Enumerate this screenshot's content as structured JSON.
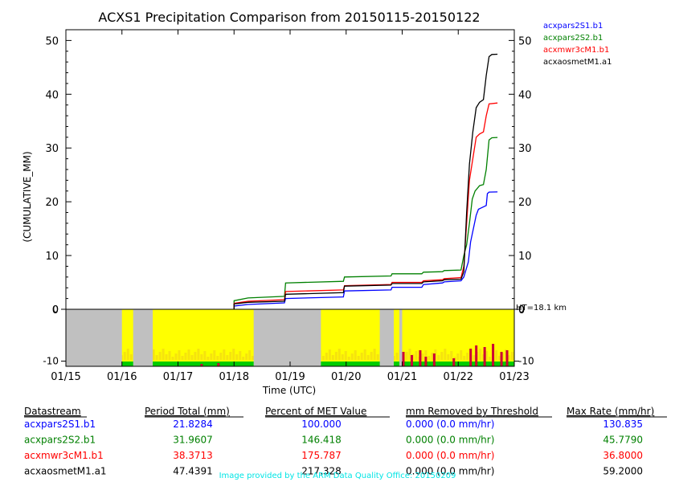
{
  "chart_data": {
    "type": "line",
    "title": "ACXS1 Precipitation Comparison from 20150115-20150122",
    "ylabel": "(CUMULATIVE_MM)",
    "xlabel": "Time (UTC)",
    "x_ticks": [
      "01/15",
      "01/16",
      "01/17",
      "01/18",
      "01/19",
      "01/20",
      "01/21",
      "01/22",
      "01/23"
    ],
    "xlim_days": [
      0,
      8
    ],
    "ylim": [
      0,
      52
    ],
    "y_ticks": [
      0,
      10,
      20,
      30,
      40,
      50
    ],
    "series": [
      {
        "name": "acxpars2S1.b1",
        "color": "#0000ff",
        "points": [
          [
            3.0,
            0
          ],
          [
            3.0,
            0.6
          ],
          [
            3.25,
            0.9
          ],
          [
            3.9,
            1.2
          ],
          [
            3.92,
            2.0
          ],
          [
            4.95,
            2.3
          ],
          [
            4.97,
            3.4
          ],
          [
            5.8,
            3.6
          ],
          [
            5.82,
            4.1
          ],
          [
            6.35,
            4.1
          ],
          [
            6.38,
            4.6
          ],
          [
            6.72,
            4.9
          ],
          [
            6.75,
            5.1
          ],
          [
            7.05,
            5.3
          ],
          [
            7.1,
            6.0
          ],
          [
            7.18,
            8.8
          ],
          [
            7.22,
            12.5
          ],
          [
            7.28,
            15.5
          ],
          [
            7.32,
            17.5
          ],
          [
            7.36,
            18.6
          ],
          [
            7.4,
            18.8
          ],
          [
            7.5,
            19.3
          ],
          [
            7.52,
            21.5
          ],
          [
            7.55,
            21.8
          ],
          [
            7.7,
            21.83
          ]
        ]
      },
      {
        "name": "acxpars2S2.b1",
        "color": "#008000",
        "points": [
          [
            3.0,
            0
          ],
          [
            3.0,
            1.6
          ],
          [
            3.25,
            2.1
          ],
          [
            3.9,
            2.4
          ],
          [
            3.92,
            4.9
          ],
          [
            4.95,
            5.2
          ],
          [
            4.97,
            6.0
          ],
          [
            5.8,
            6.2
          ],
          [
            5.82,
            6.6
          ],
          [
            6.35,
            6.6
          ],
          [
            6.38,
            6.9
          ],
          [
            6.72,
            7.0
          ],
          [
            6.75,
            7.2
          ],
          [
            7.05,
            7.3
          ],
          [
            7.1,
            10.0
          ],
          [
            7.15,
            12.0
          ],
          [
            7.2,
            16.0
          ],
          [
            7.25,
            20.5
          ],
          [
            7.3,
            22.0
          ],
          [
            7.38,
            23.0
          ],
          [
            7.45,
            23.2
          ],
          [
            7.5,
            26.0
          ],
          [
            7.55,
            31.5
          ],
          [
            7.6,
            31.9
          ],
          [
            7.7,
            31.96
          ]
        ]
      },
      {
        "name": "acxmwr3cM1.b1",
        "color": "#ff0000",
        "points": [
          [
            3.0,
            0
          ],
          [
            3.0,
            1.1
          ],
          [
            3.25,
            1.5
          ],
          [
            3.9,
            1.8
          ],
          [
            3.92,
            3.3
          ],
          [
            4.95,
            3.6
          ],
          [
            4.97,
            4.4
          ],
          [
            5.8,
            4.6
          ],
          [
            5.82,
            5.0
          ],
          [
            6.35,
            5.0
          ],
          [
            6.38,
            5.3
          ],
          [
            6.72,
            5.5
          ],
          [
            6.75,
            5.7
          ],
          [
            7.05,
            5.9
          ],
          [
            7.1,
            8.0
          ],
          [
            7.15,
            16.0
          ],
          [
            7.2,
            24.0
          ],
          [
            7.26,
            28.0
          ],
          [
            7.32,
            32.0
          ],
          [
            7.38,
            32.6
          ],
          [
            7.45,
            33.0
          ],
          [
            7.5,
            36.0
          ],
          [
            7.55,
            38.2
          ],
          [
            7.7,
            38.37
          ]
        ]
      },
      {
        "name": "acxaosmetM1.a1",
        "color": "#000000",
        "points": [
          [
            3.0,
            0
          ],
          [
            3.0,
            1.0
          ],
          [
            3.25,
            1.3
          ],
          [
            3.9,
            1.5
          ],
          [
            3.92,
            2.8
          ],
          [
            4.95,
            3.1
          ],
          [
            4.97,
            4.3
          ],
          [
            5.8,
            4.5
          ],
          [
            5.82,
            4.8
          ],
          [
            6.35,
            4.8
          ],
          [
            6.38,
            5.1
          ],
          [
            6.72,
            5.3
          ],
          [
            6.75,
            5.5
          ],
          [
            7.05,
            5.6
          ],
          [
            7.1,
            7.0
          ],
          [
            7.15,
            18.0
          ],
          [
            7.2,
            27.0
          ],
          [
            7.26,
            33.0
          ],
          [
            7.32,
            37.5
          ],
          [
            7.38,
            38.5
          ],
          [
            7.45,
            39.0
          ],
          [
            7.5,
            43.5
          ],
          [
            7.55,
            47.0
          ],
          [
            7.6,
            47.4
          ],
          [
            7.7,
            47.44
          ]
        ]
      }
    ],
    "radar_panel": {
      "type": "heatmap",
      "right_label": "HT=18.1 km",
      "y_ticks": [
        0,
        -10
      ],
      "ylim": [
        -11,
        0
      ],
      "gaps_days": [
        [
          0.0,
          1.0
        ],
        [
          1.2,
          1.55
        ],
        [
          3.35,
          4.55
        ],
        [
          5.6,
          5.85
        ],
        [
          5.95,
          6.0
        ]
      ],
      "colors": {
        "gap": "#c0c0c0",
        "fill": "#ffff00",
        "ground": "#00cc00",
        "echo": "#cc0033"
      }
    }
  },
  "table": {
    "headers": [
      "Datastream",
      "Period Total (mm)",
      "Percent of MET Value",
      "mm Removed by Threshold",
      "Max Rate (mm/hr)"
    ],
    "rows": [
      {
        "color": "#0000ff",
        "cells": [
          "acxpars2S1.b1",
          "21.8284",
          "100.000",
          "0.000 (0.0 mm/hr)",
          "130.835"
        ]
      },
      {
        "color": "#008000",
        "cells": [
          "acxpars2S2.b1",
          "31.9607",
          "146.418",
          "0.000 (0.0 mm/hr)",
          "45.7790"
        ]
      },
      {
        "color": "#ff0000",
        "cells": [
          "acxmwr3cM1.b1",
          "38.3713",
          "175.787",
          "0.000 (0.0 mm/hr)",
          "36.8000"
        ]
      },
      {
        "color": "#000000",
        "cells": [
          "acxaosmetM1.a1",
          "47.4391",
          "217.328",
          "0.000 (0.0 mm/hr)",
          "59.2000"
        ]
      }
    ]
  },
  "footer": "Image provided by the ARM Data Quality Office: 20150209"
}
